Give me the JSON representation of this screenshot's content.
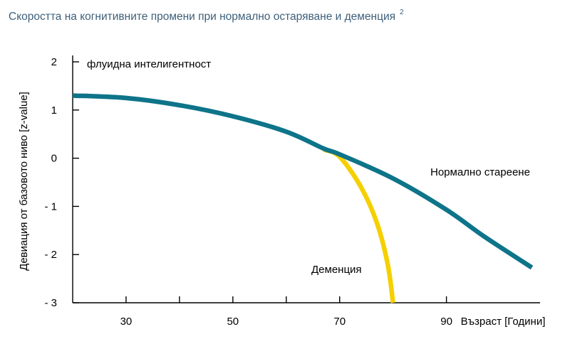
{
  "title": {
    "text": "Скоростта на когнитивните промени при нормално остаряване и деменция",
    "footnote": "2"
  },
  "chart_data": {
    "type": "line",
    "xlabel": "Възраст [Години]",
    "ylabel": "Девиация от базовото ниво [z-value]",
    "x_ticks": [
      30,
      50,
      70,
      90
    ],
    "x_tick_marks": [
      20,
      30,
      40,
      50,
      60,
      70,
      80,
      90
    ],
    "y_ticks": [
      {
        "value": 2,
        "label": "2"
      },
      {
        "value": 1,
        "label": "1"
      },
      {
        "value": 0,
        "label": "0"
      },
      {
        "value": -1,
        "label": "- 1"
      },
      {
        "value": -2,
        "label": "- 2"
      },
      {
        "value": -3,
        "label": "- 3"
      }
    ],
    "xlim": [
      20,
      107
    ],
    "ylim": [
      -3,
      2
    ],
    "grid": false,
    "annotation": "флуидна интелигентност",
    "series": [
      {
        "name": "Нормално стареене",
        "color": "#0e7489",
        "points": [
          [
            20,
            1.3
          ],
          [
            30,
            1.25
          ],
          [
            40,
            1.1
          ],
          [
            50,
            0.87
          ],
          [
            60,
            0.55
          ],
          [
            67,
            0.2
          ],
          [
            70,
            0.08
          ],
          [
            80,
            -0.42
          ],
          [
            90,
            -1.07
          ],
          [
            97,
            -1.62
          ],
          [
            106,
            -2.27
          ]
        ]
      },
      {
        "name": "Деменция",
        "color": "#f5d000",
        "points": [
          [
            67,
            0.18
          ],
          [
            70,
            0.03
          ],
          [
            74,
            -0.6
          ],
          [
            77,
            -1.35
          ],
          [
            79,
            -2.2
          ],
          [
            80,
            -3.0
          ]
        ]
      }
    ]
  }
}
